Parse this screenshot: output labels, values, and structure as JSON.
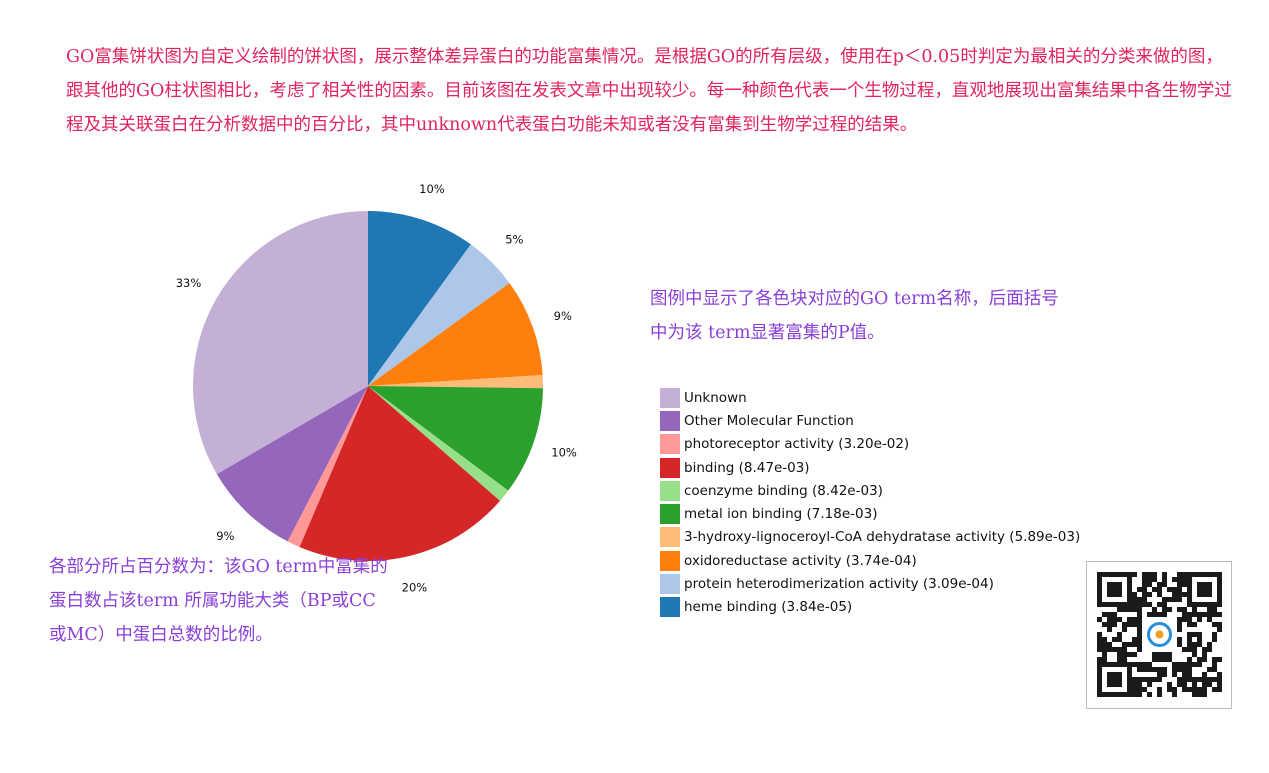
{
  "text": {
    "intro": "GO富集饼状图为自定义绘制的饼状图，展示整体差异蛋白的功能富集情况。是根据GO的所有层级，使用在p＜0.05时判定为最相关的分类来做的图，跟其他的GO柱状图相比，考虑了相关性的因素。目前该图在发表文章中出现较少。每一种颜色代表一个生物过程，直观地展现出富集结果中各生物学过程及其关联蛋白在分析数据中的百分比，其中unknown代表蛋白功能未知或者没有富集到生物学过程的结果。",
    "legend_note": "图例中显示了各色块对应的GO term名称，后面括号中为该 term显著富集的P值。",
    "percent_note": "各部分所占百分数为：该GO term中富集的蛋白数占该term 所属功能大类（BP或CC或MC）中蛋白总数的比例。"
  },
  "chart_data": {
    "type": "pie",
    "start_angle_deg": 90,
    "direction": "clockwise",
    "slices": [
      {
        "label": "heme binding (3.84e-05)",
        "value": 10,
        "pct_label": "10%",
        "color": "#1f77b4"
      },
      {
        "label": "protein heterodimerization activity (3.09e-04)",
        "value": 5,
        "pct_label": "5%",
        "color": "#aec7e8"
      },
      {
        "label": "oxidoreductase activity (3.74e-04)",
        "value": 9,
        "pct_label": "9%",
        "color": "#ff7f0e"
      },
      {
        "label": "3-hydroxy-lignoceroyl-CoA dehydratase activity (5.89e-03)",
        "value": 1.2,
        "pct_label": "",
        "color": "#ffbb78"
      },
      {
        "label": "metal ion binding (7.18e-03)",
        "value": 10,
        "pct_label": "10%",
        "color": "#2ca02c"
      },
      {
        "label": "coenzyme binding (8.42e-03)",
        "value": 1.2,
        "pct_label": "",
        "color": "#98df8a"
      },
      {
        "label": "binding (8.47e-03)",
        "value": 20,
        "pct_label": "20%",
        "color": "#d62728"
      },
      {
        "label": "photoreceptor activity (3.20e-02)",
        "value": 1.2,
        "pct_label": "",
        "color": "#ff9896"
      },
      {
        "label": "Other Molecular Function",
        "value": 9,
        "pct_label": "9%",
        "color": "#9467bd"
      },
      {
        "label": "Unknown",
        "value": 33.4,
        "pct_label": "33%",
        "color": "#c5b0d5"
      }
    ],
    "legend_order": [
      "Unknown",
      "Other Molecular Function",
      "photoreceptor activity (3.20e-02)",
      "binding (8.47e-03)",
      "coenzyme binding (8.42e-03)",
      "metal ion binding (7.18e-03)",
      "3-hydroxy-lignoceroyl-CoA dehydratase activity (5.89e-03)",
      "oxidoreductase activity (3.74e-04)",
      "protein heterodimerization activity (3.09e-04)",
      "heme binding (3.84e-05)"
    ],
    "legend_placement": "right"
  },
  "qr": {
    "icon": "qr-code-icon",
    "accent": "#2a8fd6"
  }
}
